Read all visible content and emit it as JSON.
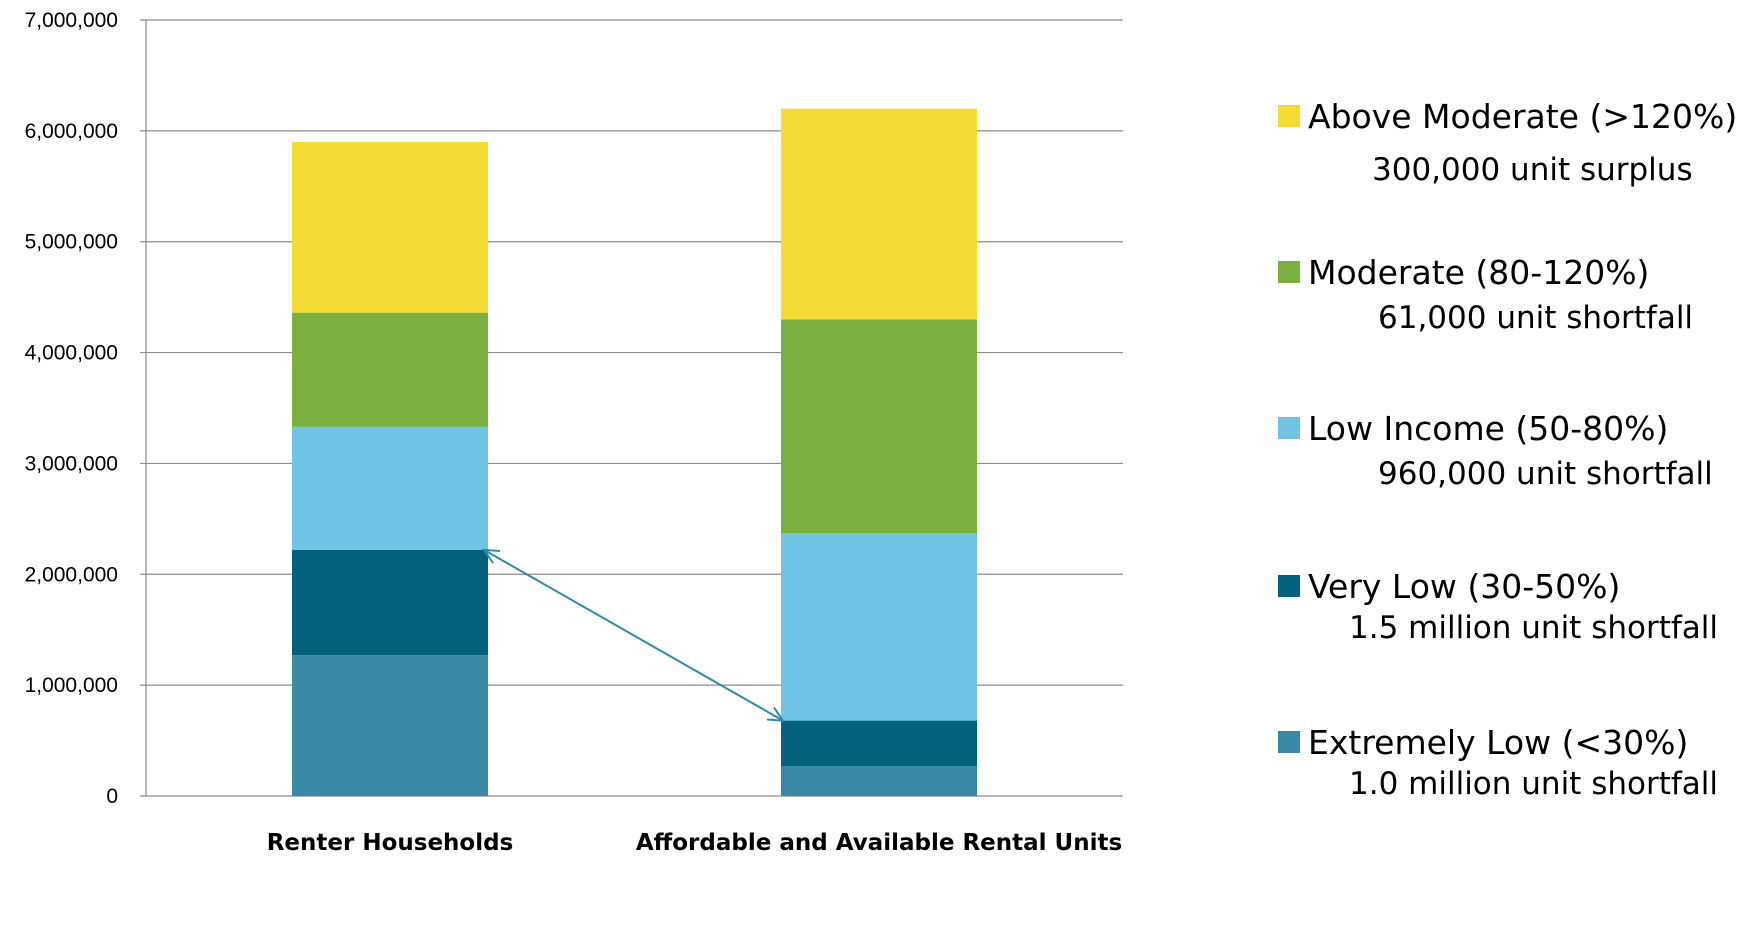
{
  "chart_data": {
    "type": "bar",
    "stacked": true,
    "categories": [
      "Renter Households",
      "Affordable and Available Rental Units"
    ],
    "ylim": [
      0,
      7000000
    ],
    "yticks": [
      0,
      1000000,
      2000000,
      3000000,
      4000000,
      5000000,
      6000000,
      7000000
    ],
    "ytick_labels": [
      "0",
      "1,000,000",
      "2,000,000",
      "3,000,000",
      "4,000,000",
      "5,000,000",
      "6,000,000",
      "7,000,000"
    ],
    "grid": true,
    "legend_position": "right",
    "series": [
      {
        "name": "Extremely Low (<30%)",
        "color": "#3a89a4",
        "values": [
          1270000,
          270000
        ]
      },
      {
        "name": "Very Low (30-50%)",
        "color": "#04617b",
        "values": [
          950000,
          410000
        ]
      },
      {
        "name": "Low Income (50-80%)",
        "color": "#71c3e6",
        "values": [
          1110000,
          1690000
        ]
      },
      {
        "name": "Moderate (80-120%)",
        "color": "#7bb040",
        "values": [
          1030000,
          1930000
        ]
      },
      {
        "name": "Above Moderate (>120%)",
        "color": "#f5dc34",
        "values": [
          1540000,
          1900000
        ]
      }
    ],
    "legend": {
      "items": [
        {
          "name": "Above Moderate (>120%)",
          "color": "#f5dc34",
          "note": "300,000 unit surplus"
        },
        {
          "name": "Moderate (80-120%)",
          "color": "#7bb040",
          "note": "61,000 unit shortfall"
        },
        {
          "name": "Low Income (50-80%)",
          "color": "#71c3e6",
          "note": "960,000 unit shortfall"
        },
        {
          "name": "Very Low (30-50%)",
          "color": "#04617b",
          "note": "1.5 million unit shortfall"
        },
        {
          "name": "Extremely Low (<30%)",
          "color": "#3a89a4",
          "note": "1.0 million unit shortfall"
        }
      ]
    },
    "annotation": {
      "type": "double-arrow",
      "from": {
        "category": "Renter Households",
        "value": 2220000
      },
      "to": {
        "category": "Affordable and Available Rental Units",
        "value": 680000
      },
      "color": "#2e8aa8"
    }
  }
}
